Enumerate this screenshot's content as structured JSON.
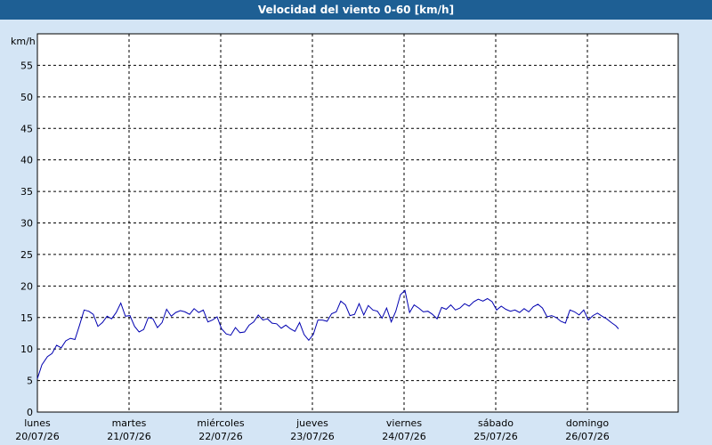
{
  "window": {
    "title": "Velocidad del viento 0-60 [km/h]"
  },
  "colors": {
    "titlebar": "#1e5f94",
    "background": "#d4e5f5",
    "plot": "#ffffff",
    "line": "#0000b0",
    "grid": "#000000"
  },
  "chart_data": {
    "type": "line",
    "title": "Velocidad del viento 0-60 [km/h]",
    "ylabel": "km/h",
    "xlabel": "",
    "ylim": [
      0,
      60
    ],
    "xlim": [
      0,
      7
    ],
    "y_ticks": [
      0,
      5,
      10,
      15,
      20,
      25,
      30,
      35,
      40,
      45,
      50,
      55
    ],
    "grid": true,
    "x_ticks": [
      {
        "day": "lunes",
        "date": "20/07/26"
      },
      {
        "day": "martes",
        "date": "21/07/26"
      },
      {
        "day": "miércoles",
        "date": "22/07/26"
      },
      {
        "day": "jueves",
        "date": "23/07/26"
      },
      {
        "day": "viernes",
        "date": "24/07/26"
      },
      {
        "day": "sábado",
        "date": "25/07/26"
      },
      {
        "day": "domingo",
        "date": "26/07/26"
      }
    ],
    "series": [
      {
        "values": [
          [
            0.0,
            5.3
          ],
          [
            0.05,
            7.5
          ],
          [
            0.11,
            8.8
          ],
          [
            0.16,
            9.3
          ],
          [
            0.21,
            10.6
          ],
          [
            0.26,
            10.2
          ],
          [
            0.31,
            11.3
          ],
          [
            0.36,
            11.7
          ],
          [
            0.41,
            11.5
          ],
          [
            0.46,
            13.8
          ],
          [
            0.51,
            16.2
          ],
          [
            0.56,
            16.0
          ],
          [
            0.61,
            15.5
          ],
          [
            0.66,
            13.6
          ],
          [
            0.71,
            14.2
          ],
          [
            0.76,
            15.2
          ],
          [
            0.81,
            14.8
          ],
          [
            0.86,
            15.8
          ],
          [
            0.91,
            17.3
          ],
          [
            0.96,
            15.2
          ],
          [
            1.01,
            15.3
          ],
          [
            1.06,
            13.6
          ],
          [
            1.11,
            12.7
          ],
          [
            1.16,
            13.1
          ],
          [
            1.21,
            15.0
          ],
          [
            1.26,
            14.8
          ],
          [
            1.31,
            13.4
          ],
          [
            1.36,
            14.2
          ],
          [
            1.41,
            16.3
          ],
          [
            1.46,
            15.2
          ],
          [
            1.51,
            15.8
          ],
          [
            1.56,
            16.1
          ],
          [
            1.61,
            15.9
          ],
          [
            1.66,
            15.5
          ],
          [
            1.71,
            16.4
          ],
          [
            1.76,
            15.8
          ],
          [
            1.81,
            16.2
          ],
          [
            1.86,
            14.3
          ],
          [
            1.91,
            14.6
          ],
          [
            1.96,
            15.1
          ],
          [
            2.01,
            13.2
          ],
          [
            2.06,
            12.4
          ],
          [
            2.11,
            12.2
          ],
          [
            2.16,
            13.4
          ],
          [
            2.21,
            12.6
          ],
          [
            2.26,
            12.7
          ],
          [
            2.31,
            13.8
          ],
          [
            2.36,
            14.3
          ],
          [
            2.41,
            15.4
          ],
          [
            2.46,
            14.6
          ],
          [
            2.51,
            14.8
          ],
          [
            2.56,
            14.1
          ],
          [
            2.61,
            14.0
          ],
          [
            2.66,
            13.3
          ],
          [
            2.71,
            13.8
          ],
          [
            2.76,
            13.2
          ],
          [
            2.81,
            12.8
          ],
          [
            2.86,
            14.2
          ],
          [
            2.91,
            12.3
          ],
          [
            2.96,
            11.4
          ],
          [
            3.01,
            12.3
          ],
          [
            3.06,
            14.6
          ],
          [
            3.11,
            14.6
          ],
          [
            3.16,
            14.4
          ],
          [
            3.21,
            15.6
          ],
          [
            3.26,
            15.9
          ],
          [
            3.31,
            17.6
          ],
          [
            3.36,
            17.0
          ],
          [
            3.41,
            15.3
          ],
          [
            3.46,
            15.5
          ],
          [
            3.51,
            17.2
          ],
          [
            3.56,
            15.4
          ],
          [
            3.61,
            16.9
          ],
          [
            3.66,
            16.2
          ],
          [
            3.71,
            16.0
          ],
          [
            3.76,
            14.9
          ],
          [
            3.81,
            16.5
          ],
          [
            3.86,
            14.3
          ],
          [
            3.91,
            16.0
          ],
          [
            3.96,
            18.6
          ],
          [
            4.01,
            19.3
          ],
          [
            4.06,
            15.8
          ],
          [
            4.11,
            17.0
          ],
          [
            4.16,
            16.5
          ],
          [
            4.21,
            15.9
          ],
          [
            4.26,
            16.0
          ],
          [
            4.31,
            15.5
          ],
          [
            4.36,
            14.8
          ],
          [
            4.41,
            16.6
          ],
          [
            4.46,
            16.3
          ],
          [
            4.51,
            17.0
          ],
          [
            4.56,
            16.2
          ],
          [
            4.61,
            16.5
          ],
          [
            4.66,
            17.2
          ],
          [
            4.71,
            16.8
          ],
          [
            4.76,
            17.5
          ],
          [
            4.81,
            17.9
          ],
          [
            4.86,
            17.6
          ],
          [
            4.91,
            18.0
          ],
          [
            4.96,
            17.5
          ],
          [
            5.01,
            16.2
          ],
          [
            5.06,
            16.8
          ],
          [
            5.11,
            16.3
          ],
          [
            5.16,
            16.0
          ],
          [
            5.21,
            16.2
          ],
          [
            5.26,
            15.8
          ],
          [
            5.31,
            16.4
          ],
          [
            5.36,
            15.9
          ],
          [
            5.41,
            16.7
          ],
          [
            5.46,
            17.1
          ],
          [
            5.51,
            16.5
          ],
          [
            5.56,
            15.1
          ],
          [
            5.61,
            15.3
          ],
          [
            5.66,
            15.0
          ],
          [
            5.71,
            14.4
          ],
          [
            5.76,
            14.1
          ],
          [
            5.81,
            16.2
          ],
          [
            5.86,
            15.9
          ],
          [
            5.91,
            15.4
          ],
          [
            5.96,
            16.2
          ],
          [
            6.01,
            14.6
          ],
          [
            6.06,
            15.3
          ],
          [
            6.11,
            15.7
          ],
          [
            6.16,
            15.2
          ],
          [
            6.21,
            14.8
          ],
          [
            6.26,
            14.2
          ],
          [
            6.31,
            13.7
          ],
          [
            6.34,
            13.2
          ]
        ]
      }
    ]
  }
}
